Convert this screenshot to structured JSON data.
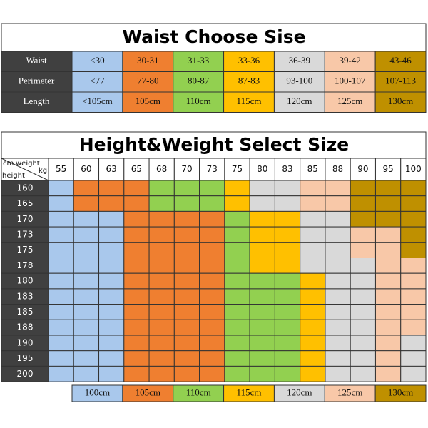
{
  "waist_table": {
    "title": "Waist Choose Sise",
    "colors": [
      "#a9c8ec",
      "#ef7f30",
      "#92d050",
      "#ffc000",
      "#d9d9d9",
      "#f8c8a8",
      "#bf9000"
    ],
    "rows": [
      {
        "label": "Waist",
        "values": [
          "<30",
          "30-31",
          "31-33",
          "33-36",
          "36-39",
          "39-42",
          "43-46"
        ]
      },
      {
        "label": "Perimeter",
        "values": [
          "<77",
          "77-80",
          "80-87",
          "87-83",
          "93-100",
          "100-107",
          "107-113"
        ]
      },
      {
        "label": "Length",
        "values": [
          "<105cm",
          "105cm",
          "110cm",
          "115cm",
          "120cm",
          "125cm",
          "130cm"
        ]
      }
    ]
  },
  "size_table": {
    "title": "Height&Weight Select Size",
    "corner": {
      "top_left": "cm",
      "top_right": "weight",
      "right_unit": "kg",
      "bottom_left": "height"
    },
    "weights": [
      "55",
      "60",
      "63",
      "65",
      "68",
      "70",
      "73",
      "75",
      "80",
      "83",
      "85",
      "88",
      "90",
      "95",
      "100"
    ],
    "heights": [
      "160",
      "165",
      "170",
      "173",
      "175",
      "178",
      "180",
      "183",
      "185",
      "188",
      "190",
      "195",
      "200"
    ],
    "cells": [
      [
        0,
        1,
        1,
        1,
        2,
        2,
        2,
        3,
        4,
        4,
        5,
        5,
        6,
        6,
        6
      ],
      [
        0,
        1,
        1,
        1,
        2,
        2,
        2,
        3,
        4,
        4,
        5,
        5,
        6,
        6,
        6
      ],
      [
        0,
        0,
        0,
        1,
        1,
        1,
        1,
        2,
        3,
        3,
        4,
        4,
        6,
        6,
        6
      ],
      [
        0,
        0,
        0,
        1,
        1,
        1,
        1,
        2,
        3,
        3,
        4,
        4,
        5,
        5,
        6
      ],
      [
        0,
        0,
        0,
        1,
        1,
        1,
        1,
        2,
        3,
        3,
        4,
        4,
        5,
        5,
        6
      ],
      [
        0,
        0,
        0,
        1,
        1,
        1,
        1,
        2,
        3,
        3,
        4,
        4,
        4,
        5,
        5
      ],
      [
        0,
        0,
        0,
        1,
        1,
        1,
        1,
        2,
        2,
        2,
        3,
        4,
        4,
        5,
        5
      ],
      [
        0,
        0,
        0,
        1,
        1,
        1,
        1,
        2,
        2,
        2,
        3,
        4,
        4,
        5,
        5
      ],
      [
        0,
        0,
        0,
        1,
        1,
        1,
        1,
        2,
        2,
        2,
        3,
        4,
        4,
        5,
        5
      ],
      [
        0,
        0,
        0,
        1,
        1,
        1,
        1,
        2,
        2,
        2,
        3,
        4,
        4,
        5,
        5
      ],
      [
        0,
        0,
        0,
        1,
        1,
        1,
        1,
        2,
        2,
        2,
        3,
        4,
        4,
        5,
        4
      ],
      [
        0,
        0,
        0,
        1,
        1,
        1,
        1,
        2,
        2,
        2,
        3,
        4,
        4,
        5,
        4
      ],
      [
        0,
        0,
        0,
        1,
        1,
        1,
        1,
        2,
        2,
        2,
        3,
        4,
        4,
        5,
        4
      ]
    ],
    "legend": [
      "100cm",
      "105cm",
      "110cm",
      "115cm",
      "120cm",
      "125cm",
      "130cm"
    ]
  }
}
